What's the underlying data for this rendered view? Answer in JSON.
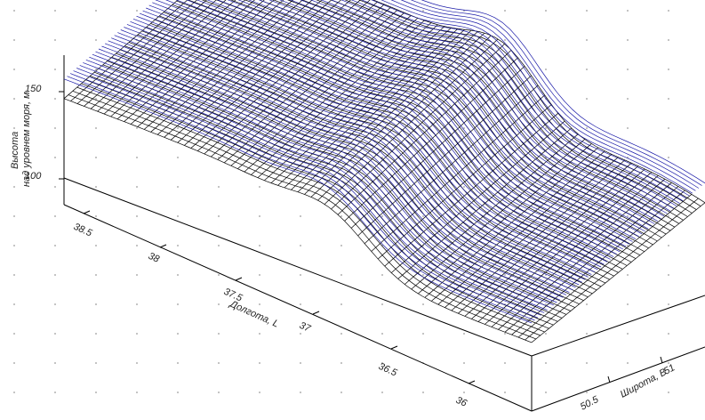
{
  "chart_data": {
    "type": "surface3d",
    "zlabel_line1": "Высота",
    "zlabel_line2": "над уровнем моря, м",
    "xlabel": "Долгота, L",
    "ylabel": "Широта, B",
    "z_ticks": [
      "150",
      "100"
    ],
    "x_ticks": [
      "38.5",
      "38",
      "37.5",
      "37",
      "36.5",
      "36"
    ],
    "y_ticks": [
      "51",
      "50.5"
    ],
    "grid": "dotted",
    "series": [
      {
        "color": "#000000",
        "style": "mesh"
      },
      {
        "color": "#1a1aa8",
        "style": "lines"
      }
    ]
  }
}
